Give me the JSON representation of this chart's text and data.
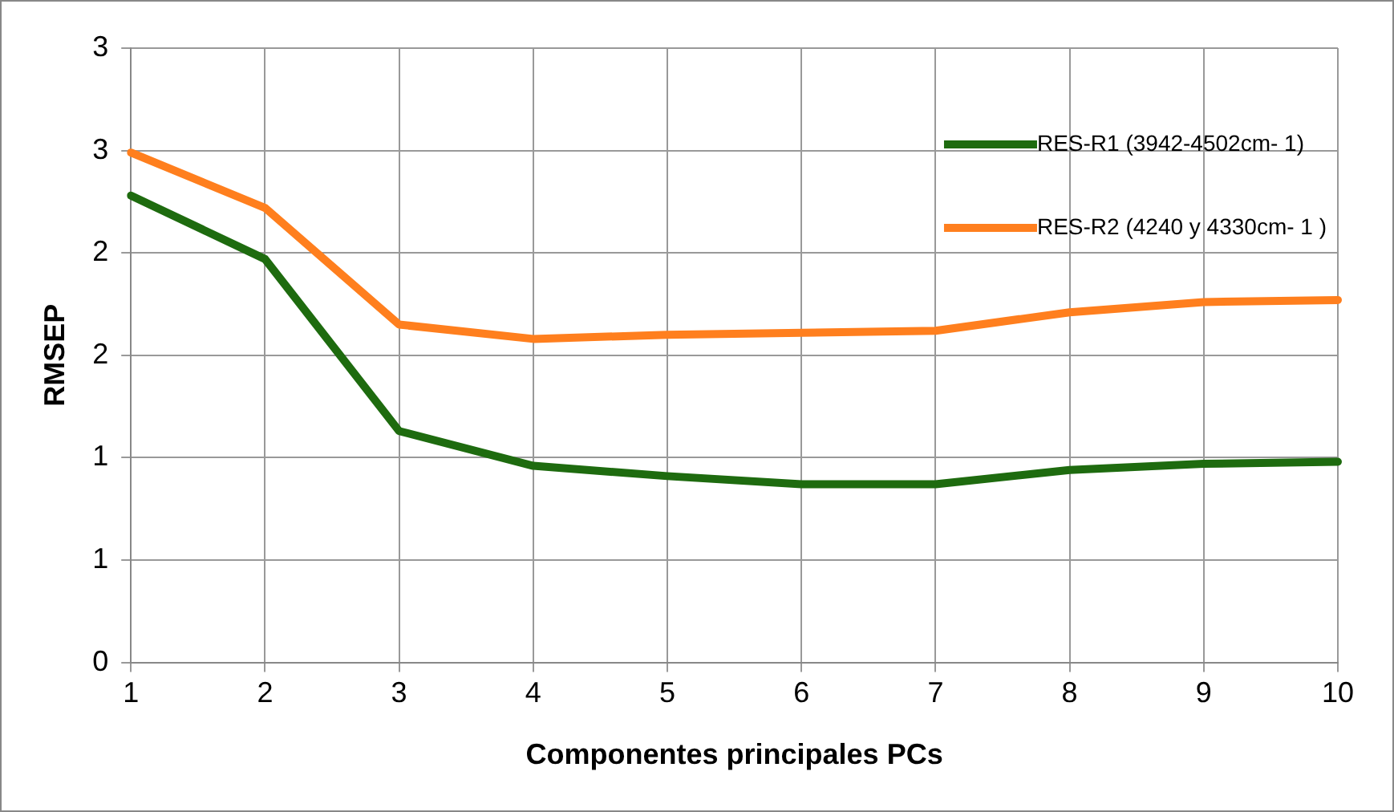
{
  "chart_data": {
    "type": "line",
    "xlabel": "Componentes principales PCs",
    "ylabel": "RMSEP",
    "categories": [
      "1",
      "2",
      "3",
      "4",
      "5",
      "6",
      "7",
      "8",
      "9",
      "10"
    ],
    "series": [
      {
        "name": "RES-R1 (3942-4502cm- 1)",
        "color": "#1e6b0f",
        "values": [
          2.28,
          1.97,
          1.13,
          0.96,
          0.91,
          0.87,
          0.87,
          0.94,
          0.97,
          0.98
        ]
      },
      {
        "name": "RES-R2 (4240 y 4330cm- 1 )",
        "color": "#ff7f1e",
        "values": [
          2.49,
          2.22,
          1.65,
          1.58,
          1.6,
          1.61,
          1.62,
          1.71,
          1.76,
          1.77
        ]
      }
    ],
    "ylim": [
      0,
      3
    ],
    "yticks": [
      0,
      {
        "value": 0.5,
        "label": "1"
      },
      1,
      {
        "value": 1.5,
        "label": "2"
      },
      2,
      {
        "value": 2.5,
        "label": "3"
      },
      3
    ],
    "grid": true,
    "legend": "top right",
    "marker": "none",
    "line_style": "solid"
  }
}
